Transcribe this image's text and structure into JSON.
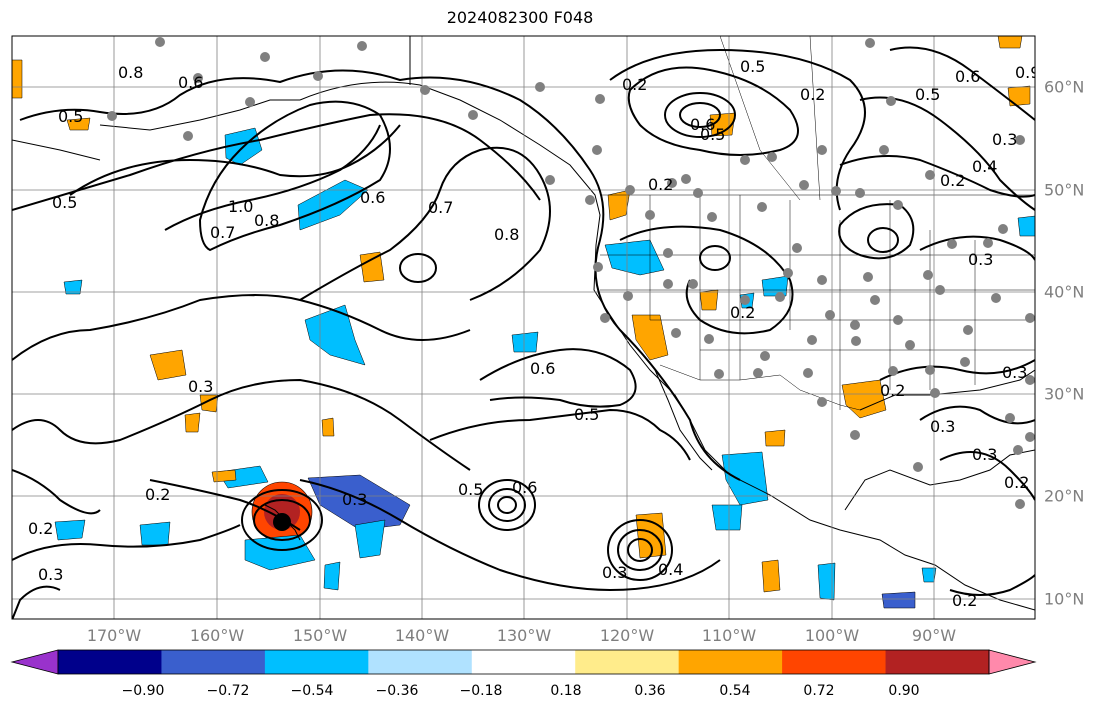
{
  "title": "2024082300 F048",
  "colors": {
    "ocean": "#ffffff",
    "land_outline": "#000000",
    "grid": "#808080",
    "stations": "#808080",
    "contours": "#000000",
    "axis_label": "#7f7f7f"
  },
  "map": {
    "projection": "lat-lon",
    "lon_range": [
      -180,
      -80
    ],
    "lat_range": [
      8,
      65
    ],
    "grid": true,
    "lon_ticks": [
      "170°W",
      "160°W",
      "150°W",
      "140°W",
      "130°W",
      "120°W",
      "110°W",
      "100°W",
      "90°W"
    ],
    "lat_ticks": [
      "10°N",
      "20°N",
      "30°N",
      "40°N",
      "50°N",
      "60°N"
    ],
    "contour_labels": [
      "0.8",
      "0.6",
      "0.5",
      "0.2",
      "0.3",
      "0.2",
      "0.5",
      "0.4",
      "0.6",
      "0.3",
      "0.2",
      "0.5",
      "0.6",
      "0.9",
      "0.7",
      "0.8",
      "1.0",
      "0.6",
      "0.7",
      "0.8",
      "0.5",
      "0.6",
      "0.5",
      "0.3",
      "0.2",
      "0.2",
      "0.3",
      "0.5",
      "0.6",
      "0.5",
      "0.3",
      "0.4",
      "0.3",
      "0.3",
      "0.2",
      "0.2",
      "0.2",
      "0.2",
      "0.3",
      "0.2",
      "0.3"
    ],
    "storm_marker": "black dot"
  },
  "colorbar": {
    "colors": [
      "#9932cc",
      "#00008b",
      "#3a5fcd",
      "#00bfff",
      "#b0e2ff",
      "#ffffff",
      "#ffec8b",
      "#ffa500",
      "#ff4500",
      "#b22222",
      "#ff89ab"
    ],
    "ticks": [
      "−0.90",
      "−0.72",
      "−0.54",
      "−0.36",
      "−0.18",
      "0.18",
      "0.36",
      "0.54",
      "0.72",
      "0.90"
    ]
  }
}
